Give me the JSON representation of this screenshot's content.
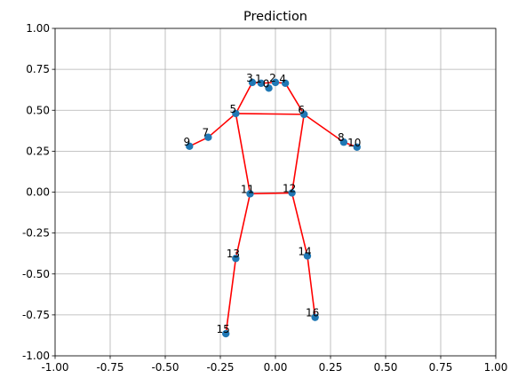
{
  "chart_data": {
    "type": "scatter",
    "title": "Prediction",
    "xlabel": "",
    "ylabel": "",
    "xlim": [
      -1.0,
      1.0
    ],
    "ylim": [
      -1.0,
      1.0
    ],
    "grid": true,
    "xticks": [
      "-1.00",
      "-0.75",
      "-0.50",
      "-0.25",
      "0.00",
      "0.25",
      "0.50",
      "0.75",
      "1.00"
    ],
    "yticks": [
      "1.00",
      "0.75",
      "0.50",
      "0.25",
      "0.00",
      "-0.25",
      "-0.50",
      "-0.75",
      "-1.00"
    ],
    "xtick_values": [
      -1.0,
      -0.75,
      -0.5,
      -0.25,
      0.0,
      0.25,
      0.5,
      0.75,
      1.0
    ],
    "ytick_values": [
      1.0,
      0.75,
      0.5,
      0.25,
      0.0,
      -0.25,
      -0.5,
      -0.75,
      -1.0
    ],
    "points": [
      {
        "label": "0",
        "x": -0.03,
        "y": 0.635
      },
      {
        "label": "1",
        "x": -0.065,
        "y": 0.665
      },
      {
        "label": "2",
        "x": 0.0,
        "y": 0.67
      },
      {
        "label": "3",
        "x": -0.105,
        "y": 0.67
      },
      {
        "label": "4",
        "x": 0.045,
        "y": 0.665
      },
      {
        "label": "5",
        "x": -0.18,
        "y": 0.48
      },
      {
        "label": "6",
        "x": 0.13,
        "y": 0.475
      },
      {
        "label": "7",
        "x": -0.305,
        "y": 0.335
      },
      {
        "label": "8",
        "x": 0.31,
        "y": 0.305
      },
      {
        "label": "9",
        "x": -0.39,
        "y": 0.28
      },
      {
        "label": "10",
        "x": 0.37,
        "y": 0.275
      },
      {
        "label": "11",
        "x": -0.115,
        "y": -0.01
      },
      {
        "label": "12",
        "x": 0.075,
        "y": -0.005
      },
      {
        "label": "13",
        "x": -0.18,
        "y": -0.405
      },
      {
        "label": "14",
        "x": 0.145,
        "y": -0.39
      },
      {
        "label": "15",
        "x": -0.225,
        "y": -0.865
      },
      {
        "label": "16",
        "x": 0.18,
        "y": -0.765
      }
    ],
    "edges": [
      [
        5,
        6
      ],
      [
        5,
        7
      ],
      [
        7,
        9
      ],
      [
        6,
        8
      ],
      [
        8,
        10
      ],
      [
        5,
        11
      ],
      [
        6,
        12
      ],
      [
        11,
        12
      ],
      [
        11,
        13
      ],
      [
        13,
        15
      ],
      [
        12,
        14
      ],
      [
        14,
        16
      ],
      [
        3,
        1
      ],
      [
        1,
        2
      ],
      [
        2,
        4
      ],
      [
        3,
        5
      ],
      [
        4,
        6
      ]
    ],
    "point_color": "#1f77b4",
    "line_color": "#ff0000",
    "grid_color": "#b0b0b0"
  }
}
